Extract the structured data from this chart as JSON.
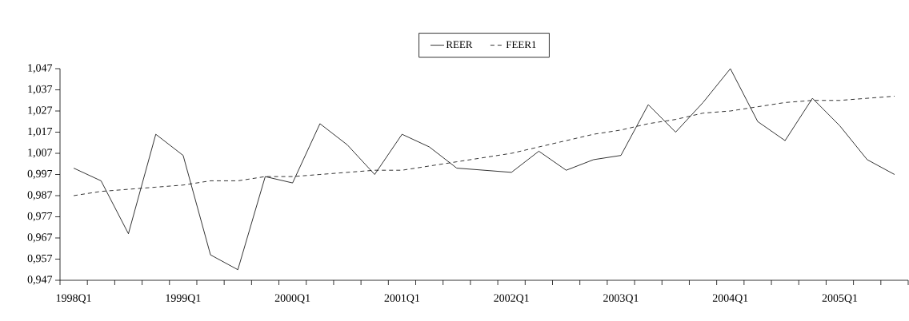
{
  "chart_data": {
    "type": "line",
    "categories": [
      "1998Q1",
      null,
      null,
      null,
      "1999Q1",
      null,
      null,
      null,
      "2000Q1",
      null,
      null,
      null,
      "2001Q1",
      null,
      null,
      null,
      "2002Q1",
      null,
      null,
      null,
      "2003Q1",
      null,
      null,
      null,
      "2004Q1",
      null,
      null,
      null,
      "2005Q1",
      null,
      null
    ],
    "series": [
      {
        "name": "REER",
        "color": "#000000",
        "line_style": "solid",
        "values": [
          1.0,
          0.994,
          0.969,
          1.016,
          1.006,
          0.959,
          0.952,
          0.996,
          0.993,
          1.021,
          1.011,
          0.997,
          1.016,
          1.01,
          1.0,
          0.999,
          0.998,
          1.008,
          0.999,
          1.004,
          1.006,
          1.03,
          1.017,
          1.031,
          1.047,
          1.022,
          1.013,
          1.033,
          1.02,
          1.004,
          0.997
        ]
      },
      {
        "name": "FEER1",
        "color": "#000000",
        "line_style": "dashed",
        "values": [
          0.987,
          0.989,
          0.99,
          0.991,
          0.992,
          0.994,
          0.994,
          0.996,
          0.996,
          0.997,
          0.998,
          0.999,
          0.999,
          1.001,
          1.003,
          1.005,
          1.007,
          1.01,
          1.013,
          1.016,
          1.018,
          1.021,
          1.023,
          1.026,
          1.027,
          1.029,
          1.031,
          1.032,
          1.032,
          1.033,
          1.034
        ]
      }
    ],
    "ylim": [
      0.947,
      1.047
    ],
    "yticks": [
      {
        "value": 0.947,
        "label": "0,947"
      },
      {
        "value": 0.957,
        "label": "0,957"
      },
      {
        "value": 0.967,
        "label": "0,967"
      },
      {
        "value": 0.977,
        "label": "0,977"
      },
      {
        "value": 0.987,
        "label": "0,987"
      },
      {
        "value": 0.997,
        "label": "0,997"
      },
      {
        "value": 1.007,
        "label": "1,007"
      },
      {
        "value": 1.017,
        "label": "1,017"
      },
      {
        "value": 1.027,
        "label": "1,027"
      },
      {
        "value": 1.037,
        "label": "1,037"
      },
      {
        "value": 1.047,
        "label": "1,047"
      }
    ],
    "grid": false,
    "legend": "top",
    "marker": "none"
  }
}
